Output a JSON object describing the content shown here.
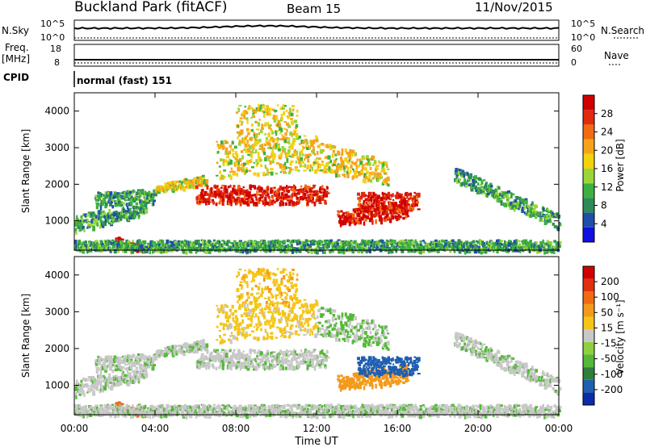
{
  "header": {
    "station": "Buckland Park (fitACF)",
    "beam": "Beam 15",
    "date": "11/Nov/2015"
  },
  "strip": {
    "nsky_label": "N.Sky",
    "nsky_ticks": [
      "10^5",
      "10^0"
    ],
    "nsearch_label": "N.Search",
    "nsearch_ticks": [
      "10^5",
      "10^0"
    ],
    "freq_label": "Freq.",
    "freq_unit": "[MHz]",
    "freq_ticks": [
      "18",
      "8"
    ],
    "nave_label": "Nave",
    "nave_ticks": [
      "60",
      "0"
    ],
    "cpid_label": "CPID",
    "cpid_value": "normal (fast) 151"
  },
  "chart_data": [
    {
      "type": "heatmap",
      "name": "power",
      "ylabel": "Slant Range [km]",
      "ylim": [
        200,
        4500
      ],
      "yticks": [
        "4000",
        "3000",
        "2000",
        "1000"
      ],
      "colorbar_label": "Power [dB]",
      "colorbar_ticks": [
        "28",
        "24",
        "20",
        "16",
        "12",
        "8",
        "4"
      ],
      "colors": [
        "#1010e0",
        "#1f4fa8",
        "#2e8b57",
        "#3db040",
        "#9ad63a",
        "#f3d20e",
        "#f7a31a",
        "#f26b12",
        "#e22a0e",
        "#d00000"
      ]
    },
    {
      "type": "heatmap",
      "name": "velocity",
      "xlabel": "Time UT",
      "xticks": [
        "00:00",
        "04:00",
        "08:00",
        "12:00",
        "16:00",
        "20:00",
        "00:00"
      ],
      "ylabel": "Slant Range [km]",
      "ylim": [
        200,
        4500
      ],
      "yticks": [
        "4000",
        "3000",
        "2000",
        "1000"
      ],
      "colorbar_label": "Velocity [m s⁻¹]",
      "colorbar_ticks": [
        "200",
        "100",
        "50",
        "15",
        "-15",
        "-50",
        "-100",
        "-200"
      ],
      "colors": [
        "#0a2ca8",
        "#1f5fb0",
        "#2f7f3a",
        "#56b83a",
        "#8fd040",
        "#c8c8c8",
        "#f5c518",
        "#f39a1a",
        "#f06a12",
        "#e03010",
        "#d00000"
      ]
    }
  ]
}
